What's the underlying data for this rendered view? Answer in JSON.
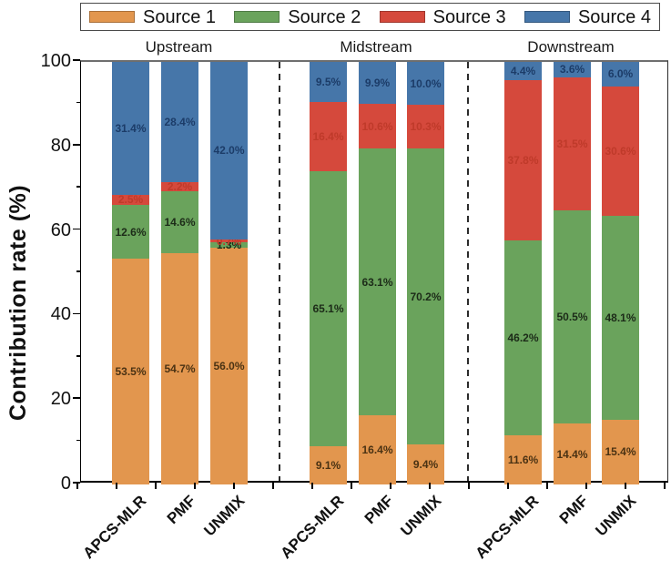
{
  "chart_data": {
    "type": "bar",
    "stacked": true,
    "ylabel": "Contribution rate (%)",
    "ylim": [
      0,
      100
    ],
    "yticks_major": [
      0,
      20,
      40,
      60,
      80,
      100
    ],
    "yticks_minor": [
      10,
      30,
      50,
      70,
      90
    ],
    "grid": false,
    "legend_position": "top",
    "series_names": [
      "Source 1",
      "Source 2",
      "Source 3",
      "Source 4"
    ],
    "series_colors": [
      "#e2964e",
      "#6aa35c",
      "#d5493c",
      "#4676a9"
    ],
    "value_label_colors": [
      "#4a3213",
      "#1c2b18",
      "#bf3a2a",
      "#1c3c68"
    ],
    "groups": [
      {
        "label": "Upstream",
        "bars": [
          {
            "category": "APCS-MLR",
            "values": [
              53.5,
              12.6,
              2.5,
              31.4
            ]
          },
          {
            "category": "PMF",
            "values": [
              54.7,
              14.6,
              2.2,
              28.4
            ]
          },
          {
            "category": "UNMIX",
            "values": [
              56.0,
              1.3,
              0.7,
              42.0
            ]
          }
        ]
      },
      {
        "label": "Midstream",
        "bars": [
          {
            "category": "APCS-MLR",
            "values": [
              9.1,
              65.1,
              16.4,
              9.5
            ]
          },
          {
            "category": "PMF",
            "values": [
              16.4,
              63.1,
              10.6,
              9.9
            ]
          },
          {
            "category": "UNMIX",
            "values": [
              9.4,
              70.2,
              10.3,
              10.0
            ]
          }
        ]
      },
      {
        "label": "Downstream",
        "bars": [
          {
            "category": "APCS-MLR",
            "values": [
              11.6,
              46.2,
              37.8,
              4.4
            ]
          },
          {
            "category": "PMF",
            "values": [
              14.4,
              50.5,
              31.5,
              3.6
            ]
          },
          {
            "category": "UNMIX",
            "values": [
              15.4,
              48.1,
              30.6,
              6.0
            ]
          }
        ]
      }
    ]
  }
}
